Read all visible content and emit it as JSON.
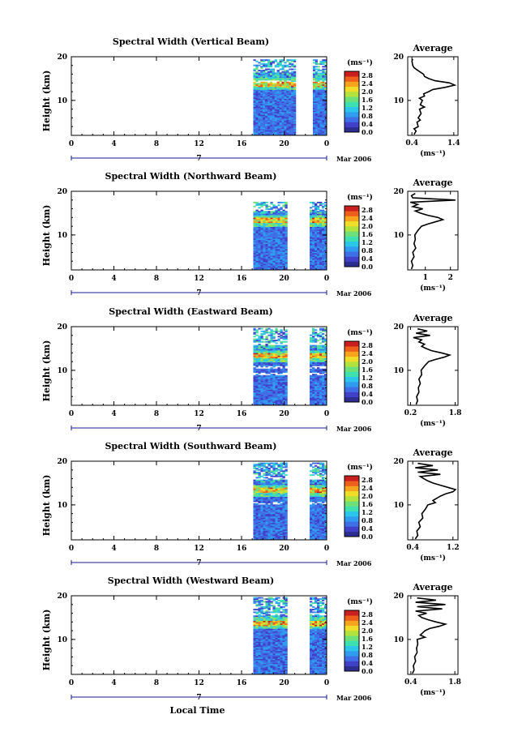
{
  "colors": {
    "background": "#ffffff",
    "axis": "#000000",
    "date_axis": "#1a1a8c",
    "colorbar": [
      "#2d2d90",
      "#4040c8",
      "#3f6fe6",
      "#2f9cf0",
      "#2cc6ea",
      "#3ee0b0",
      "#6de07a",
      "#b2e23d",
      "#f0dd2a",
      "#f6a41e",
      "#ee5f1c",
      "#c91f1f"
    ]
  },
  "chart_data": [
    {
      "type": "heatmap",
      "name": "vertical",
      "title": "Spectral Width (Vertical Beam)",
      "ylabel": "Height (km)",
      "xlabel": "",
      "xticks": [
        "0",
        "4",
        "8",
        "12",
        "16",
        "20",
        "0"
      ],
      "xlim": [
        0,
        24
      ],
      "ylim": [
        2,
        20
      ],
      "yticks": [
        "20",
        "10"
      ],
      "date_center": "7",
      "date_label": "Mar 2006",
      "colorbar": {
        "unit": "(ms⁻¹)",
        "ticks": [
          "2.8",
          "2.4",
          "2.0",
          "1.6",
          "1.2",
          "0.8",
          "0.4",
          "0.0"
        ],
        "range": [
          0,
          3.0
        ]
      },
      "data_segments": [
        [
          17.1,
          21.1
        ],
        [
          22.7,
          24
        ]
      ],
      "features": {
        "white_gaps": [
          17.3,
          14.2
        ],
        "max_band": 13.6,
        "top_clip": 19.2
      },
      "average": {
        "title": "Average",
        "xlabel": "(ms⁻¹)",
        "xticks": [
          "0.4",
          "1.4"
        ],
        "yticks": [
          "20",
          "10"
        ],
        "xlim": [
          0.3,
          1.5
        ],
        "profile": [
          [
            2.2,
            0.45
          ],
          [
            3,
            0.5
          ],
          [
            3.5,
            0.45
          ],
          [
            4,
            0.55
          ],
          [
            5,
            0.52
          ],
          [
            5.5,
            0.6
          ],
          [
            6,
            0.55
          ],
          [
            7,
            0.62
          ],
          [
            8,
            0.58
          ],
          [
            8.5,
            0.7
          ],
          [
            9,
            0.6
          ],
          [
            10,
            0.65
          ],
          [
            10.5,
            0.58
          ],
          [
            11,
            0.7
          ],
          [
            11.5,
            0.68
          ],
          [
            12,
            0.8
          ],
          [
            12.5,
            0.9
          ],
          [
            13,
            1.2
          ],
          [
            13.5,
            1.42
          ],
          [
            14,
            1.3
          ],
          [
            14.5,
            0.95
          ],
          [
            15,
            0.8
          ],
          [
            15.5,
            0.7
          ],
          [
            16,
            0.68
          ],
          [
            16.5,
            0.6
          ],
          [
            17,
            0.52
          ],
          [
            17.5,
            0.45
          ],
          [
            18,
            0.42
          ],
          [
            19,
            0.4
          ],
          [
            19.5,
            0.42
          ]
        ]
      }
    },
    {
      "type": "heatmap",
      "name": "northward",
      "title": "Spectral Width (Northward Beam)",
      "ylabel": "Height (km)",
      "xticks": [
        "0",
        "4",
        "8",
        "12",
        "16",
        "20",
        "0"
      ],
      "xlim": [
        0,
        24
      ],
      "ylim": [
        2,
        20
      ],
      "yticks": [
        "20",
        "10"
      ],
      "date_center": "7",
      "date_label": "Mar 2006",
      "colorbar": {
        "unit": "(ms⁻¹)",
        "ticks": [
          "2.8",
          "2.4",
          "2.0",
          "1.6",
          "1.2",
          "0.8",
          "0.4",
          "0.0"
        ],
        "range": [
          0,
          3.0
        ]
      },
      "data_segments": [
        [
          17.1,
          20.3
        ],
        [
          22.4,
          24
        ]
      ],
      "features": {
        "white_gaps": [
          15.6
        ],
        "max_band": 13.2,
        "top_clip": 17.5
      },
      "average": {
        "title": "Average",
        "xlabel": "(ms⁻¹)",
        "xticks": [
          "1",
          "2"
        ],
        "yticks": [
          "20",
          "10"
        ],
        "xlim": [
          0.3,
          2.3
        ],
        "profile": [
          [
            2.2,
            0.45
          ],
          [
            3,
            0.5
          ],
          [
            4,
            0.45
          ],
          [
            5,
            0.55
          ],
          [
            6,
            0.5
          ],
          [
            7,
            0.62
          ],
          [
            8,
            0.55
          ],
          [
            9,
            0.6
          ],
          [
            10,
            0.58
          ],
          [
            11,
            0.7
          ],
          [
            12,
            0.85
          ],
          [
            12.5,
            1.1
          ],
          [
            13,
            1.4
          ],
          [
            13.5,
            1.7
          ],
          [
            14,
            1.5
          ],
          [
            14.5,
            1.1
          ],
          [
            15,
            0.8
          ],
          [
            15.5,
            0.6
          ],
          [
            16,
            0.9
          ],
          [
            16.5,
            0.5
          ],
          [
            17,
            0.7
          ],
          [
            17.5,
            0.4
          ],
          [
            18,
            2.2
          ],
          [
            18.5,
            0.5
          ],
          [
            19,
            0.45
          ],
          [
            19.5,
            0.6
          ]
        ]
      }
    },
    {
      "type": "heatmap",
      "name": "eastward",
      "title": "Spectral Width (Eastward Beam)",
      "ylabel": "Height (km)",
      "xticks": [
        "0",
        "4",
        "8",
        "12",
        "16",
        "20",
        "0"
      ],
      "xlim": [
        0,
        24
      ],
      "ylim": [
        2,
        20
      ],
      "yticks": [
        "20",
        "10"
      ],
      "date_center": "7",
      "date_label": "Mar 2006",
      "colorbar": {
        "unit": "(ms⁻¹)",
        "ticks": [
          "2.8",
          "2.4",
          "2.0",
          "1.6",
          "1.2",
          "0.8",
          "0.4",
          "0.0"
        ],
        "range": [
          0,
          3.0
        ]
      },
      "data_segments": [
        [
          17.1,
          20.3
        ],
        [
          22.4,
          24
        ]
      ],
      "features": {
        "white_gaps": [
          15.9,
          10.6,
          9.0
        ],
        "max_band": 13.2,
        "top_clip": 19.4
      },
      "average": {
        "title": "Average",
        "xlabel": "(ms⁻¹)",
        "xticks": [
          "0.2",
          "1.8"
        ],
        "yticks": [
          "20",
          "10"
        ],
        "xlim": [
          0.1,
          1.9
        ],
        "profile": [
          [
            2.2,
            0.4
          ],
          [
            3,
            0.45
          ],
          [
            4,
            0.42
          ],
          [
            5,
            0.5
          ],
          [
            6,
            0.48
          ],
          [
            7,
            0.55
          ],
          [
            8,
            0.5
          ],
          [
            9,
            0.6
          ],
          [
            10,
            0.58
          ],
          [
            11,
            0.7
          ],
          [
            12,
            0.85
          ],
          [
            12.5,
            1.1
          ],
          [
            13,
            1.4
          ],
          [
            13.5,
            1.6
          ],
          [
            14,
            1.3
          ],
          [
            14.5,
            0.95
          ],
          [
            15,
            0.75
          ],
          [
            15.5,
            0.6
          ],
          [
            16,
            0.7
          ],
          [
            16.5,
            0.5
          ],
          [
            17,
            0.6
          ],
          [
            17.5,
            0.3
          ],
          [
            18,
            0.9
          ],
          [
            18.5,
            0.4
          ],
          [
            19,
            0.8
          ],
          [
            19.5,
            0.45
          ]
        ]
      }
    },
    {
      "type": "heatmap",
      "name": "southward",
      "title": "Spectral Width (Southward Beam)",
      "ylabel": "Height (km)",
      "xticks": [
        "0",
        "4",
        "8",
        "12",
        "16",
        "20",
        "0"
      ],
      "xlim": [
        0,
        24
      ],
      "ylim": [
        2,
        20
      ],
      "yticks": [
        "20",
        "10"
      ],
      "date_center": "7",
      "date_label": "Mar 2006",
      "colorbar": {
        "unit": "(ms⁻¹)",
        "ticks": [
          "2.8",
          "2.4",
          "2.0",
          "1.6",
          "1.2",
          "0.8",
          "0.4",
          "0.0"
        ],
        "range": [
          0,
          3.0
        ]
      },
      "data_segments": [
        [
          17.1,
          20.3
        ],
        [
          22.4,
          24
        ]
      ],
      "features": {
        "white_gaps": [
          15.9,
          10.2
        ],
        "max_band": 13.2,
        "top_clip": 19.6
      },
      "average": {
        "title": "Average",
        "xlabel": "(ms⁻¹)",
        "xticks": [
          "0.4",
          "1.2"
        ],
        "yticks": [
          "20",
          "10"
        ],
        "xlim": [
          0.3,
          1.3
        ],
        "profile": [
          [
            2.2,
            0.45
          ],
          [
            3,
            0.5
          ],
          [
            4,
            0.48
          ],
          [
            5,
            0.55
          ],
          [
            6,
            0.52
          ],
          [
            7,
            0.6
          ],
          [
            8,
            0.58
          ],
          [
            9,
            0.65
          ],
          [
            10,
            0.7
          ],
          [
            10.5,
            0.85
          ],
          [
            11,
            0.8
          ],
          [
            12,
            0.95
          ],
          [
            12.5,
            1.05
          ],
          [
            13,
            1.2
          ],
          [
            13.5,
            1.25
          ],
          [
            14,
            1.1
          ],
          [
            14.5,
            0.95
          ],
          [
            15,
            0.8
          ],
          [
            15.5,
            0.7
          ],
          [
            16,
            0.62
          ],
          [
            16.5,
            0.55
          ],
          [
            17,
            0.95
          ],
          [
            17.5,
            0.5
          ],
          [
            18,
            0.9
          ],
          [
            18.5,
            0.45
          ],
          [
            19,
            0.8
          ],
          [
            19.5,
            0.5
          ]
        ]
      }
    },
    {
      "type": "heatmap",
      "name": "westward",
      "title": "Spectral Width (Westward Beam)",
      "ylabel": "Height (km)",
      "xlabel": "Local Time",
      "xticks": [
        "0",
        "4",
        "8",
        "12",
        "16",
        "20",
        "0"
      ],
      "xlim": [
        0,
        24
      ],
      "ylim": [
        2,
        20
      ],
      "yticks": [
        "20",
        "10"
      ],
      "date_center": "7",
      "date_label": "Mar 2006",
      "colorbar": {
        "unit": "(ms⁻¹)",
        "ticks": [
          "2.8",
          "2.4",
          "2.0",
          "1.6",
          "1.2",
          "0.8",
          "0.4",
          "0.0"
        ],
        "range": [
          0,
          3.0
        ]
      },
      "data_segments": [
        [
          17.1,
          20.3
        ],
        [
          22.4,
          24
        ]
      ],
      "features": {
        "white_gaps": [
          15.6
        ],
        "max_band": 13.6,
        "top_clip": 19.6
      },
      "average": {
        "title": "Average",
        "xlabel": "(ms⁻¹)",
        "xticks": [
          "0.4",
          "1.8"
        ],
        "yticks": [
          "20",
          "10"
        ],
        "xlim": [
          0.3,
          1.9
        ],
        "profile": [
          [
            2.2,
            0.45
          ],
          [
            3,
            0.5
          ],
          [
            4,
            0.48
          ],
          [
            5,
            0.55
          ],
          [
            6,
            0.52
          ],
          [
            7,
            0.6
          ],
          [
            8,
            0.58
          ],
          [
            9,
            0.62
          ],
          [
            10,
            0.6
          ],
          [
            10.5,
            0.85
          ],
          [
            11,
            0.7
          ],
          [
            12,
            0.85
          ],
          [
            12.5,
            1.0
          ],
          [
            13,
            1.3
          ],
          [
            13.5,
            1.5
          ],
          [
            14,
            1.2
          ],
          [
            14.5,
            0.95
          ],
          [
            15,
            0.75
          ],
          [
            15.5,
            0.65
          ],
          [
            16,
            0.9
          ],
          [
            16.5,
            0.55
          ],
          [
            17,
            1.4
          ],
          [
            17.5,
            0.6
          ],
          [
            18,
            1.5
          ],
          [
            18.5,
            0.55
          ],
          [
            19,
            1.2
          ],
          [
            19.5,
            0.6
          ]
        ]
      }
    }
  ]
}
